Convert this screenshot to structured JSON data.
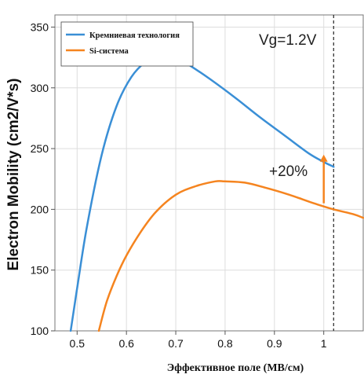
{
  "chart_data": {
    "type": "line",
    "title": "",
    "xlabel": "Эффективное поле (МВ/см)",
    "ylabel": "Electron Mobility (cm2/V*s)",
    "xlim": [
      0.455,
      1.08
    ],
    "ylim": [
      100,
      360
    ],
    "xticks": [
      0.5,
      0.6,
      0.7,
      0.8,
      0.9,
      1
    ],
    "xtick_labels": [
      "0.5",
      "0.6",
      "0.7",
      "0.8",
      "0.9",
      "1"
    ],
    "yticks": [
      100,
      150,
      200,
      250,
      300,
      350
    ],
    "ytick_labels": [
      "100",
      "150",
      "200",
      "250",
      "300",
      "350"
    ],
    "grid": true,
    "legend_position": "top-left",
    "series": [
      {
        "name": "Кремниевая технология",
        "color": "#3a8fd6",
        "x": [
          0.487,
          0.5,
          0.52,
          0.55,
          0.58,
          0.61,
          0.64,
          0.66,
          0.68,
          0.7,
          0.73,
          0.77,
          0.82,
          0.87,
          0.92,
          0.97,
          1.0,
          1.02
        ],
        "y": [
          100,
          135,
          186,
          245,
          285,
          309,
          322,
          326,
          327,
          325,
          318,
          307,
          292,
          276,
          261,
          246,
          239,
          235
        ]
      },
      {
        "name": "Si-система",
        "color": "#f5841f",
        "x": [
          0.544,
          0.56,
          0.58,
          0.6,
          0.63,
          0.66,
          0.7,
          0.74,
          0.78,
          0.8,
          0.84,
          0.88,
          0.93,
          0.98,
          1.02,
          1.06,
          1.08
        ],
        "y": [
          100,
          124,
          145,
          162,
          182,
          198,
          212,
          219,
          223,
          223,
          222,
          218,
          212,
          205,
          200,
          196,
          193
        ]
      }
    ],
    "annotations": [
      {
        "text": "Vg=1.2V"
      },
      {
        "text": "+20%",
        "arrow_x": 1.0,
        "arrow_from": 205,
        "arrow_to": 245,
        "color": "#f5841f"
      }
    ],
    "vline": {
      "x": 1.02,
      "style": "dashed"
    }
  }
}
